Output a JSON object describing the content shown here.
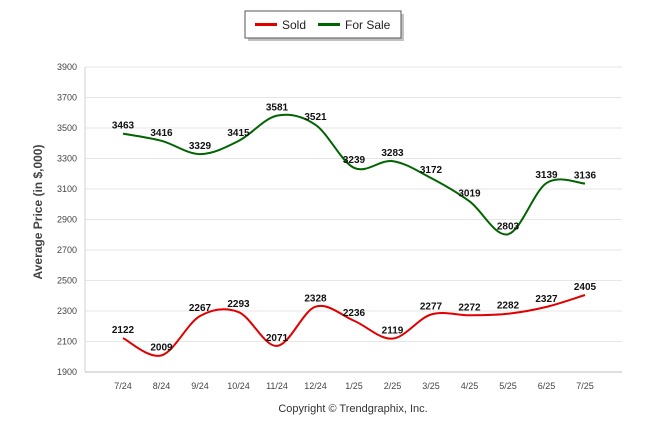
{
  "chart_data": {
    "type": "line",
    "categories": [
      "7/24",
      "8/24",
      "9/24",
      "10/24",
      "11/24",
      "12/24",
      "1/25",
      "2/25",
      "3/25",
      "4/25",
      "5/25",
      "6/25",
      "7/25"
    ],
    "series": [
      {
        "name": "Sold",
        "color": "#e00000",
        "values": [
          2122,
          2009,
          2267,
          2293,
          2071,
          2328,
          2236,
          2119,
          2277,
          2272,
          2282,
          2327,
          2405
        ]
      },
      {
        "name": "For Sale",
        "color": "#006400",
        "values": [
          3463,
          3416,
          3329,
          3415,
          3581,
          3521,
          3239,
          3283,
          3172,
          3019,
          2803,
          3139,
          3136
        ]
      }
    ],
    "ylabel": "Average Price (in $,000)",
    "ylim": [
      1900,
      3900
    ],
    "yticks": [
      1900,
      2100,
      2300,
      2500,
      2700,
      2900,
      3100,
      3300,
      3500,
      3700,
      3900
    ],
    "grid": true,
    "legend_position": "top-center"
  },
  "footer": {
    "copyright": "Copyright © Trendgraphix, Inc."
  }
}
